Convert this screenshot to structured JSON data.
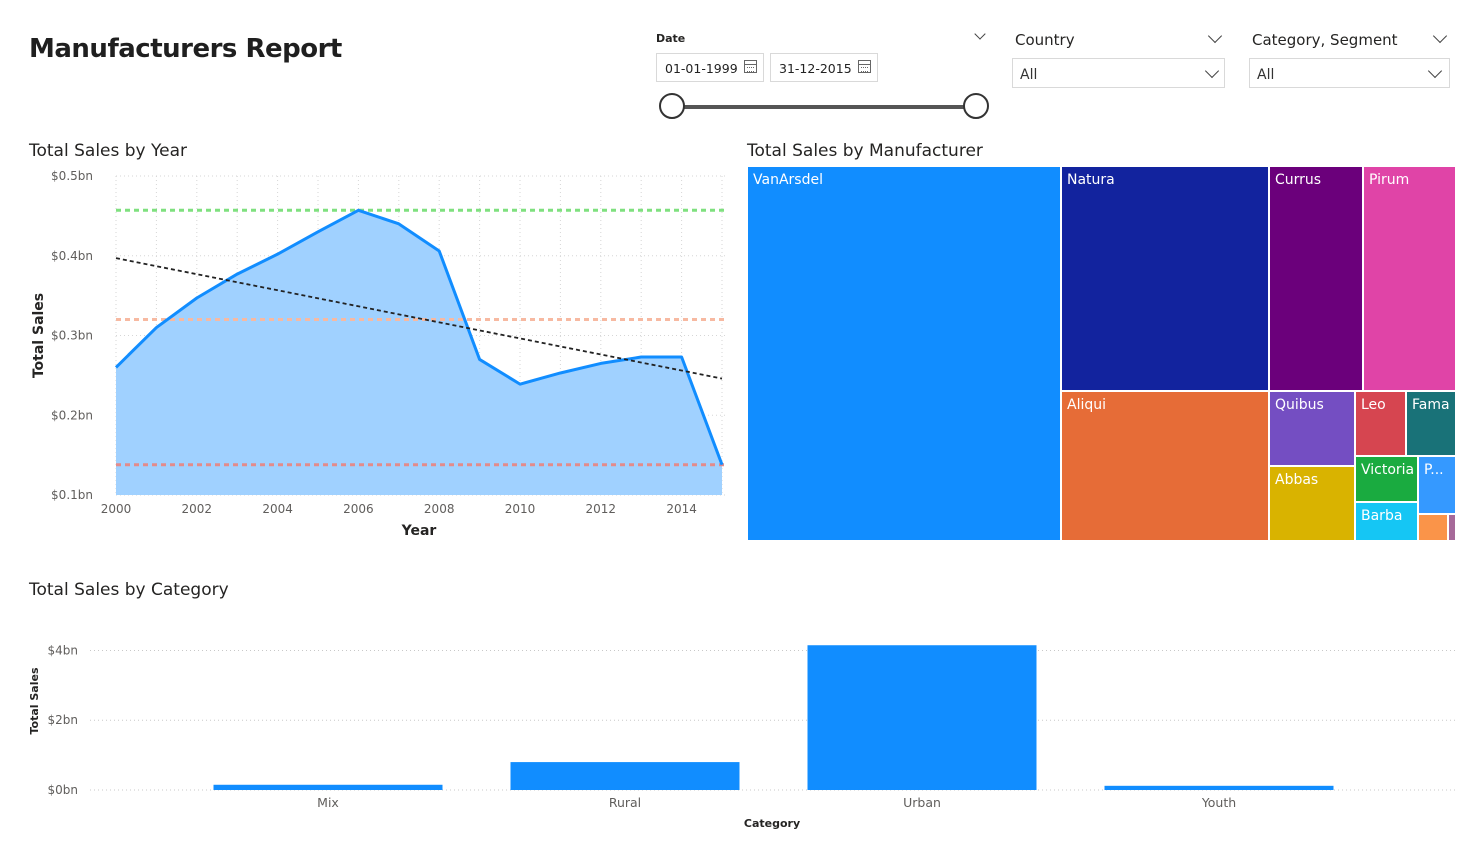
{
  "report": {
    "title": "Manufacturers Report"
  },
  "slicers": {
    "date": {
      "label": "Date",
      "start": "01-01-1999",
      "end": "31-12-2015"
    },
    "country": {
      "label": "Country",
      "value": "All"
    },
    "category_segment": {
      "label": "Category, Segment",
      "value": "All"
    }
  },
  "colors": {
    "accent": "#118dff",
    "area_fill": "#a0d1ff",
    "max_line": "#7fe07f",
    "avg_line": "#f7b9a1",
    "min_line": "#e38b8b",
    "trend": "#222222"
  },
  "chart_data": [
    {
      "type": "area",
      "title": "Total Sales by Year",
      "xlabel": "Year",
      "ylabel": "Total Sales",
      "x": [
        2000,
        2001,
        2002,
        2003,
        2004,
        2005,
        2006,
        2007,
        2008,
        2009,
        2010,
        2011,
        2012,
        2013,
        2014,
        2015
      ],
      "values": [
        0.26,
        0.31,
        0.347,
        0.377,
        0.402,
        0.43,
        0.457,
        0.44,
        0.406,
        0.27,
        0.239,
        0.253,
        0.265,
        0.273,
        0.273,
        0.138
      ],
      "xticks": [
        "2000",
        "2002",
        "2004",
        "2006",
        "2008",
        "2010",
        "2012",
        "2014"
      ],
      "yticks": [
        "$0.1bn",
        "$0.2bn",
        "$0.3bn",
        "$0.4bn",
        "$0.5bn"
      ],
      "ylim": [
        0.1,
        0.5
      ],
      "reference_lines": {
        "max": 0.457,
        "average": 0.32,
        "min": 0.138
      },
      "trend_line": {
        "start": 0.397,
        "end": 0.246
      },
      "grid": true
    },
    {
      "type": "treemap",
      "title": "Total Sales by Manufacturer",
      "items": [
        {
          "name": "VanArsdel",
          "color": "#118dff"
        },
        {
          "name": "Natura",
          "color": "#12239e"
        },
        {
          "name": "Currus",
          "color": "#6b007b"
        },
        {
          "name": "Pirum",
          "color": "#e044a7"
        },
        {
          "name": "Aliqui",
          "color": "#e66c37"
        },
        {
          "name": "Quibus",
          "color": "#744ec2"
        },
        {
          "name": "Leo",
          "color": "#d64550"
        },
        {
          "name": "Fama",
          "color": "#197278"
        },
        {
          "name": "Abbas",
          "color": "#d9b300"
        },
        {
          "name": "Victoria",
          "color": "#1aab40"
        },
        {
          "name": "P...",
          "color": "#3599ff"
        },
        {
          "name": "Barba",
          "color": "#15c6f4"
        }
      ]
    },
    {
      "type": "bar",
      "title": "Total Sales by Category",
      "xlabel": "Category",
      "ylabel": "Total Sales",
      "categories": [
        "Mix",
        "Rural",
        "Urban",
        "Youth"
      ],
      "values": [
        0.15,
        0.8,
        4.15,
        0.12
      ],
      "yticks": [
        "$0bn",
        "$2bn",
        "$4bn"
      ],
      "ylim": [
        0,
        4.3
      ],
      "grid": true
    }
  ]
}
